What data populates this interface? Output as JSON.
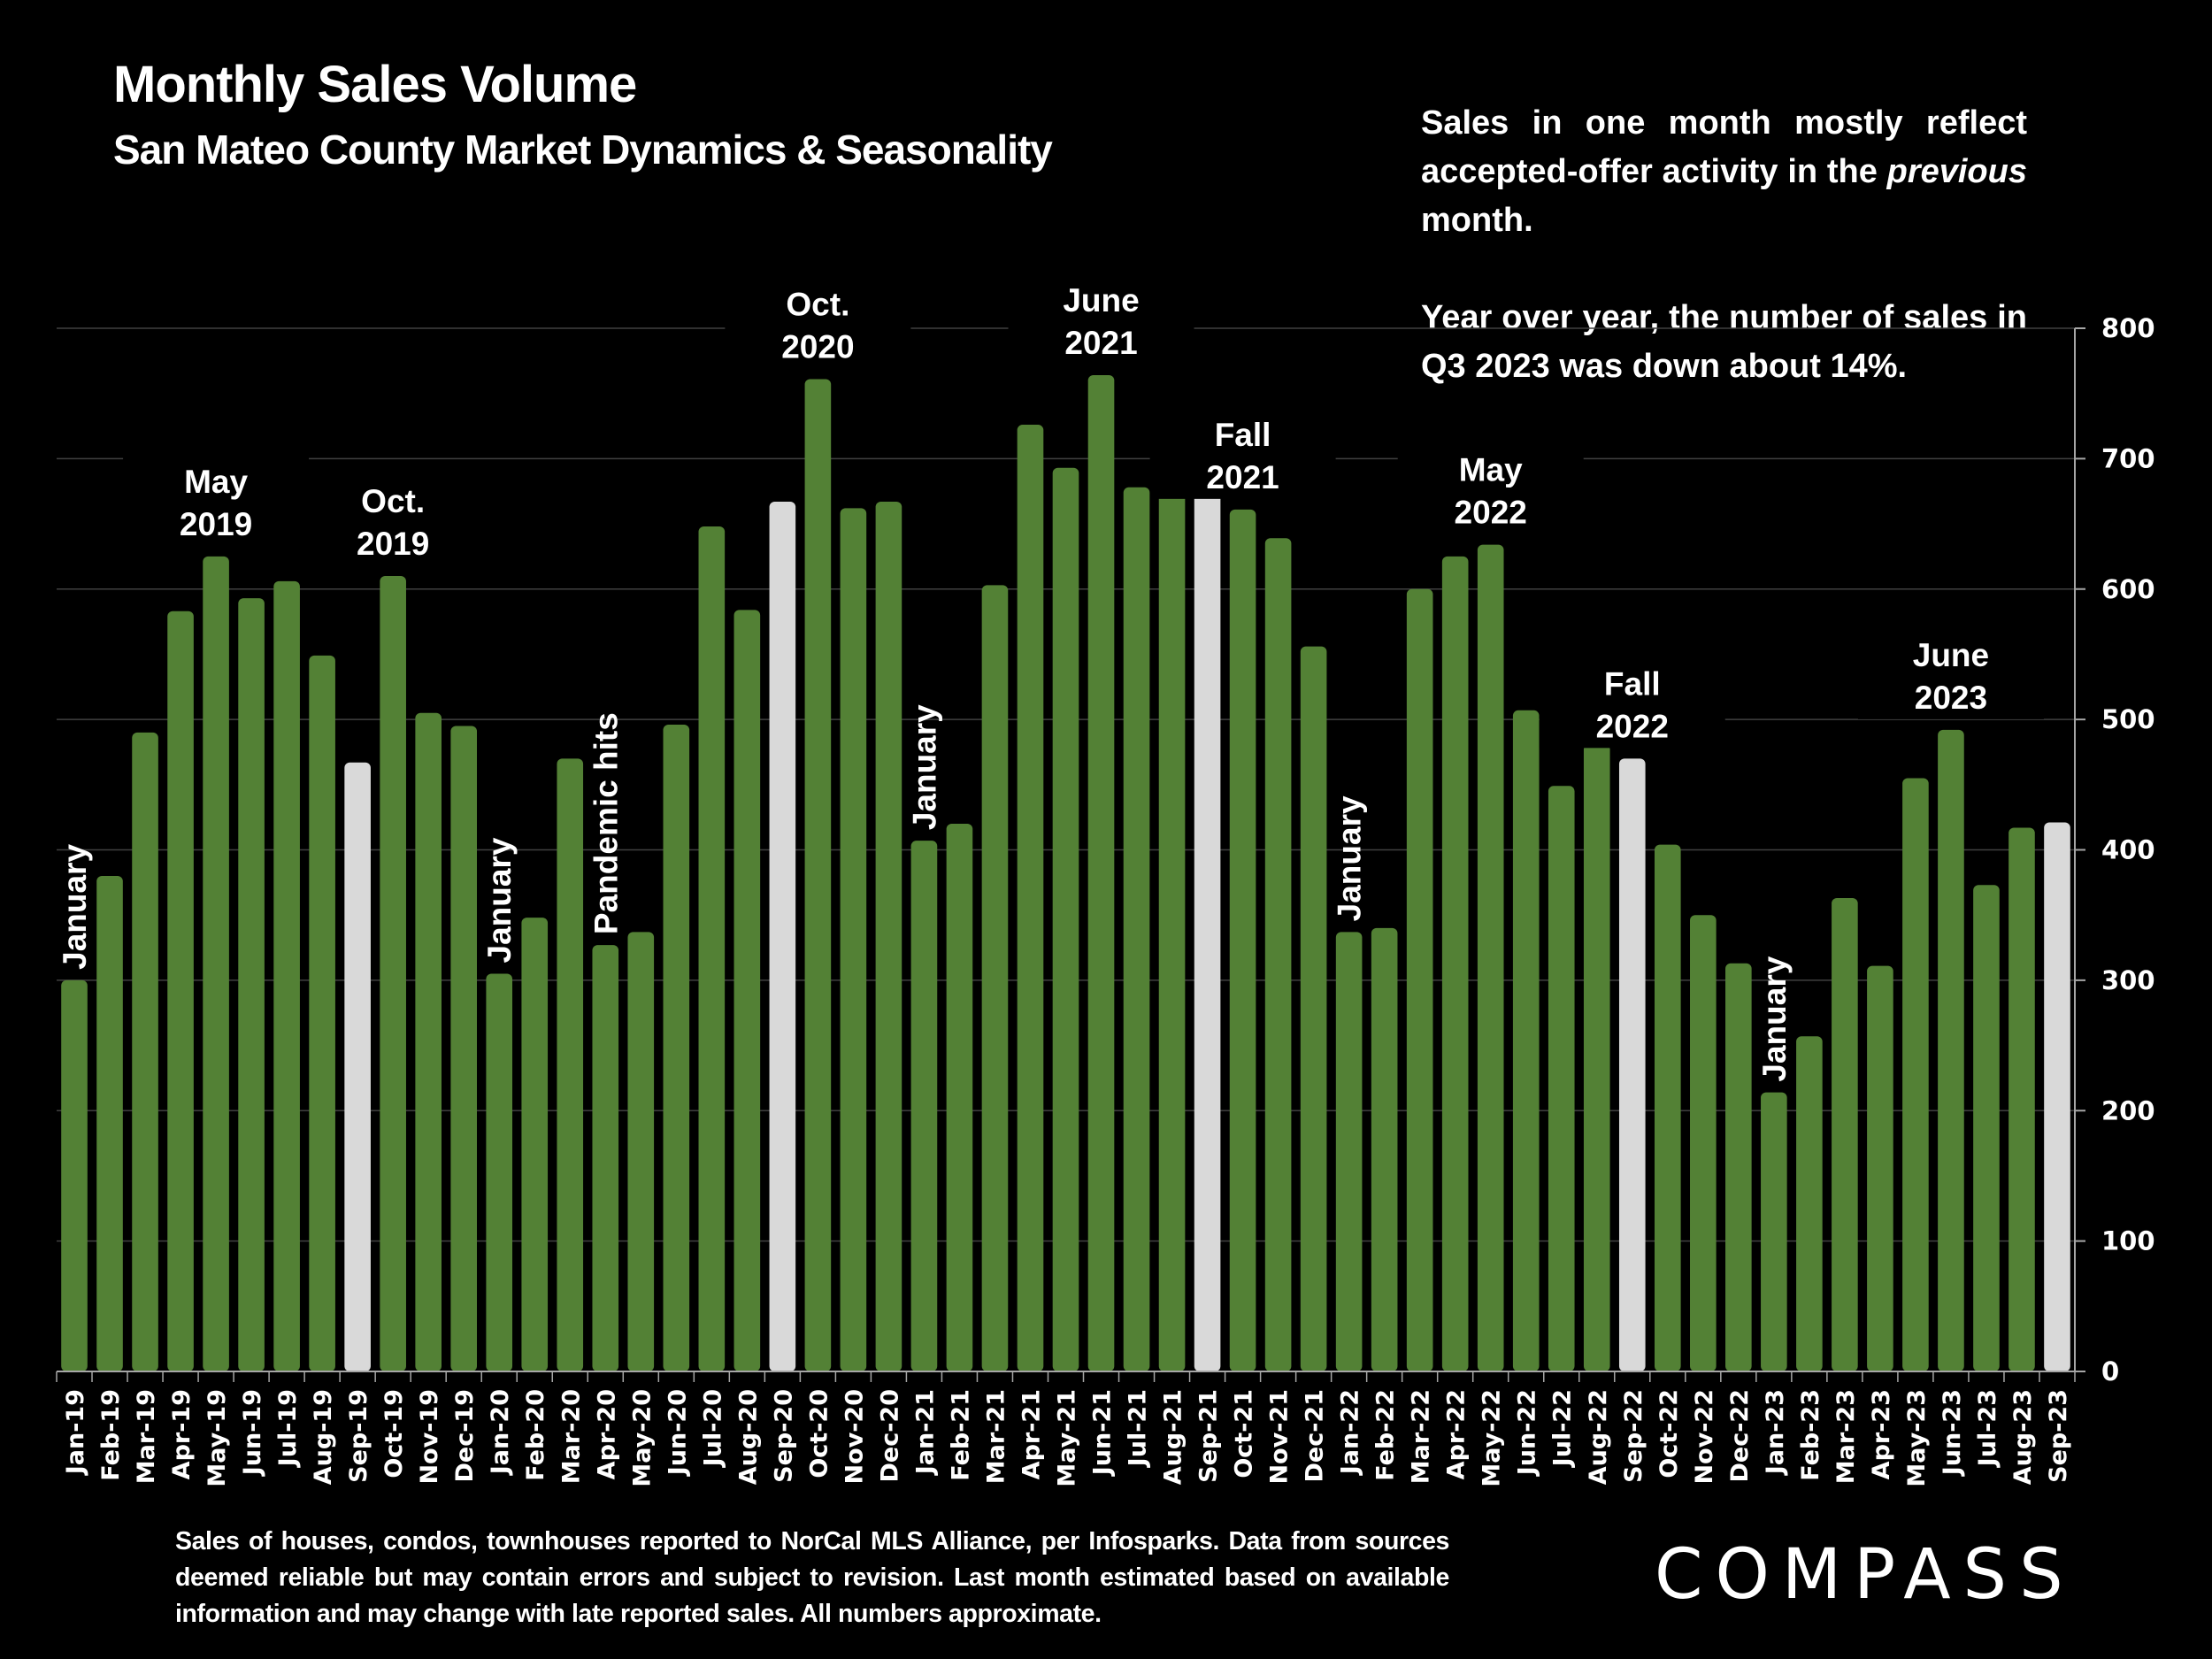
{
  "header": {
    "title": "Monthly Sales Volume",
    "subtitle": "San Mateo County Market Dynamics & Seasonality"
  },
  "note": {
    "p1_before": "Sales in one month mostly reflect accepted-offer activity in the ",
    "p1_emph": "previous",
    "p1_after": " month.",
    "p2": "Year over year, the number of sales in Q3 2023 was down about 14%."
  },
  "footnote": "Sales of houses, condos, townhouses reported to NorCal MLS Alliance, per Infosparks. Data from sources deemed reliable but may contain errors and subject to revision. Last month estimated based on available information and may change with late reported sales. All numbers approximate.",
  "logo": "COMPASS",
  "colors": {
    "bar": "#538135",
    "highlight_bar": "#d9d9d9",
    "background": "#000000",
    "grid": "#404040",
    "axis": "#a6a6a6",
    "text": "#ffffff"
  },
  "chart_data": {
    "type": "bar",
    "title": "Monthly Sales Volume",
    "subtitle": "San Mateo County Market Dynamics & Seasonality",
    "xlabel": "",
    "ylabel": "",
    "ylim": [
      0,
      800
    ],
    "yticks": [
      0,
      100,
      200,
      300,
      400,
      500,
      600,
      700,
      800
    ],
    "y_axis_position": "right",
    "grid": true,
    "categories": [
      "Jan-19",
      "Feb-19",
      "Mar-19",
      "Apr-19",
      "May-19",
      "Jun-19",
      "Jul-19",
      "Aug-19",
      "Sep-19",
      "Oct-19",
      "Nov-19",
      "Dec-19",
      "Jan-20",
      "Feb-20",
      "Mar-20",
      "Apr-20",
      "May-20",
      "Jun-20",
      "Jul-20",
      "Aug-20",
      "Sep-20",
      "Oct-20",
      "Nov-20",
      "Dec-20",
      "Jan-21",
      "Feb-21",
      "Mar-21",
      "Apr-21",
      "May-21",
      "Jun-21",
      "Jul-21",
      "Aug-21",
      "Sep-21",
      "Oct-21",
      "Nov-21",
      "Dec-21",
      "Jan-22",
      "Feb-22",
      "Mar-22",
      "Apr-22",
      "May-22",
      "Jun-22",
      "Jul-22",
      "Aug-22",
      "Sep-22",
      "Oct-22",
      "Nov-22",
      "Dec-22",
      "Jan-23",
      "Feb-23",
      "Mar-23",
      "Apr-23",
      "May-23",
      "Jun-23",
      "Jul-23",
      "Aug-23",
      "Sep-23"
    ],
    "values": [
      300,
      380,
      490,
      583,
      625,
      593,
      606,
      549,
      467,
      610,
      505,
      495,
      305,
      348,
      470,
      327,
      337,
      496,
      648,
      584,
      667,
      761,
      662,
      667,
      407,
      420,
      603,
      726,
      693,
      764,
      678,
      675,
      678,
      661,
      639,
      556,
      337,
      340,
      600,
      625,
      634,
      507,
      449,
      481,
      470,
      404,
      350,
      313,
      214,
      257,
      363,
      311,
      455,
      492,
      373,
      417,
      421
    ],
    "highlighted": [
      "Sep-19",
      "Sep-20",
      "Sep-21",
      "Sep-22",
      "Sep-23"
    ],
    "annotations": [
      {
        "text": [
          "January"
        ],
        "at": "Jan-19",
        "rotated": true
      },
      {
        "text": [
          "May",
          "2019"
        ],
        "at": "May-19",
        "rotated": false
      },
      {
        "text": [
          "Oct.",
          "2019"
        ],
        "at": "Oct-19",
        "rotated": false
      },
      {
        "text": [
          "January"
        ],
        "at": "Jan-20",
        "rotated": true
      },
      {
        "text": [
          "Pandemic hits"
        ],
        "at": "Apr-20",
        "rotated": true
      },
      {
        "text": [
          "Oct.",
          "2020"
        ],
        "at": "Oct-20",
        "rotated": false
      },
      {
        "text": [
          "January"
        ],
        "at": "Jan-21",
        "rotated": true
      },
      {
        "text": [
          "June",
          "2021"
        ],
        "at": "Jun-21",
        "rotated": false
      },
      {
        "text": [
          "Fall",
          "2021"
        ],
        "at": "Oct-21",
        "rotated": false
      },
      {
        "text": [
          "January"
        ],
        "at": "Jan-22",
        "rotated": true
      },
      {
        "text": [
          "May",
          "2022"
        ],
        "at": "May-22",
        "rotated": false
      },
      {
        "text": [
          "Fall",
          "2022"
        ],
        "at": "Sep-22",
        "rotated": false
      },
      {
        "text": [
          "January"
        ],
        "at": "Jan-23",
        "rotated": true
      },
      {
        "text": [
          "June",
          "2023"
        ],
        "at": "Jun-23",
        "rotated": false
      }
    ]
  }
}
